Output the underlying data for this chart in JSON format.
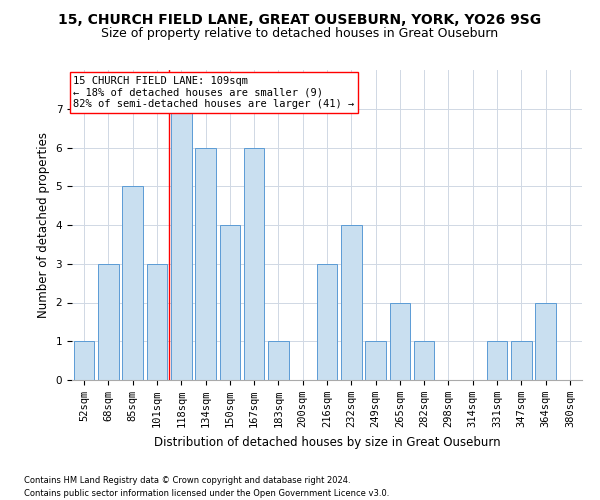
{
  "title1": "15, CHURCH FIELD LANE, GREAT OUSEBURN, YORK, YO26 9SG",
  "title2": "Size of property relative to detached houses in Great Ouseburn",
  "xlabel": "Distribution of detached houses by size in Great Ouseburn",
  "ylabel": "Number of detached properties",
  "footnote1": "Contains HM Land Registry data © Crown copyright and database right 2024.",
  "footnote2": "Contains public sector information licensed under the Open Government Licence v3.0.",
  "categories": [
    "52sqm",
    "68sqm",
    "85sqm",
    "101sqm",
    "118sqm",
    "134sqm",
    "150sqm",
    "167sqm",
    "183sqm",
    "200sqm",
    "216sqm",
    "232sqm",
    "249sqm",
    "265sqm",
    "282sqm",
    "298sqm",
    "314sqm",
    "331sqm",
    "347sqm",
    "364sqm",
    "380sqm"
  ],
  "values": [
    1,
    3,
    5,
    3,
    7,
    6,
    4,
    6,
    1,
    0,
    3,
    4,
    1,
    2,
    1,
    0,
    0,
    1,
    1,
    2,
    0
  ],
  "bar_color": "#c9dff0",
  "bar_edge_color": "#5b9bd5",
  "vline_x": 3.5,
  "annotation_text": "15 CHURCH FIELD LANE: 109sqm\n← 18% of detached houses are smaller (9)\n82% of semi-detached houses are larger (41) →",
  "ylim": [
    0,
    8
  ],
  "yticks": [
    0,
    1,
    2,
    3,
    4,
    5,
    6,
    7
  ],
  "grid_color": "#d0d8e4",
  "background_color": "#ffffff",
  "title1_fontsize": 10,
  "title2_fontsize": 9,
  "xlabel_fontsize": 8.5,
  "ylabel_fontsize": 8.5,
  "tick_fontsize": 7.5,
  "annotation_fontsize": 7.5,
  "footnote_fontsize": 6
}
